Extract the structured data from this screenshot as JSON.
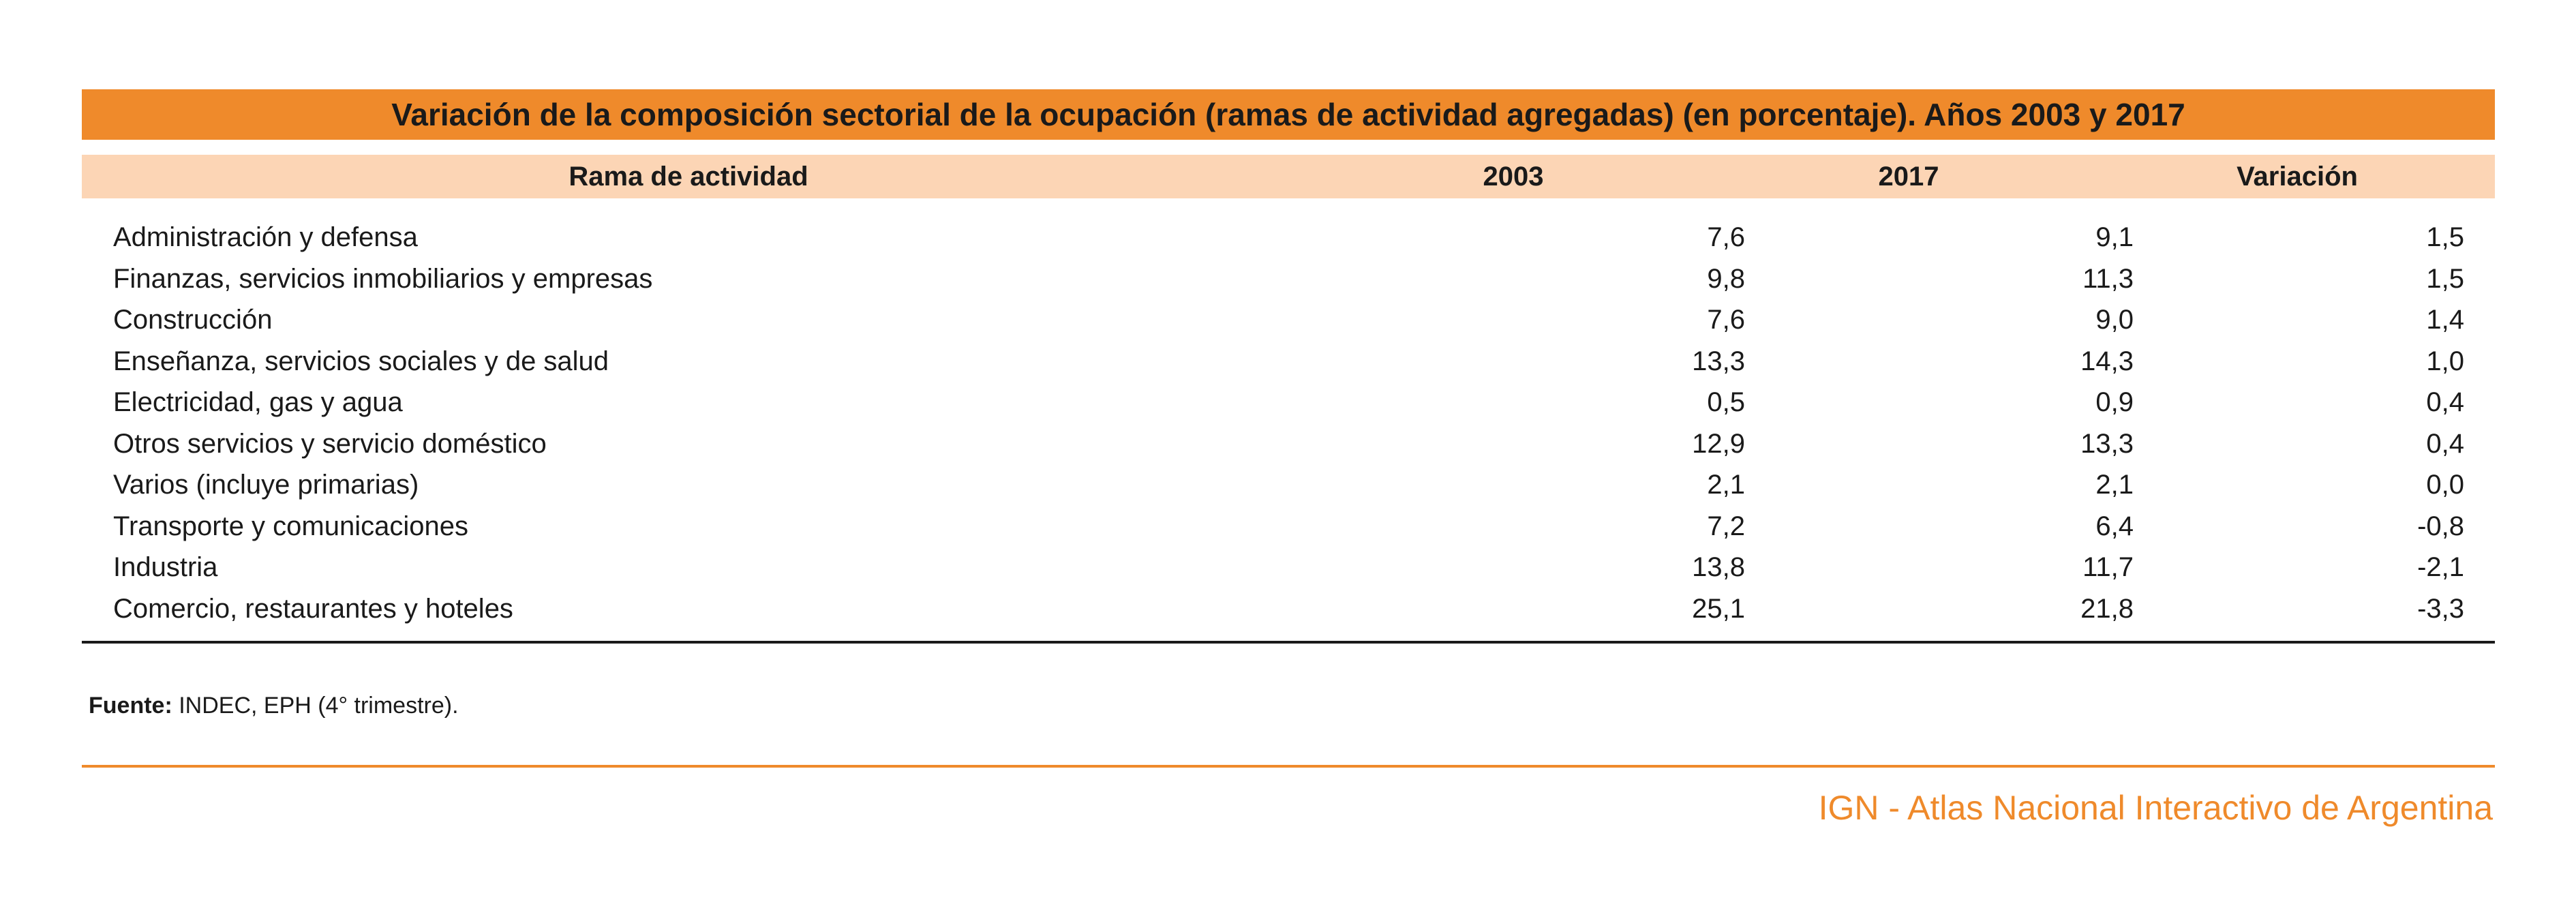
{
  "table": {
    "title": "Variación de la composición sectorial de la ocupación (ramas de actividad agregadas) (en porcentaje). Años 2003 y 2017",
    "headers": [
      "Rama de actividad",
      "2003",
      "2017",
      "Variación"
    ],
    "rows": [
      {
        "rama": "Administración y defensa",
        "y2003": "7,6",
        "y2017": "9,1",
        "variacion": "1,5"
      },
      {
        "rama": "Finanzas, servicios inmobiliarios y empresas",
        "y2003": "9,8",
        "y2017": "11,3",
        "variacion": "1,5"
      },
      {
        "rama": "Construcción",
        "y2003": "7,6",
        "y2017": "9,0",
        "variacion": "1,4"
      },
      {
        "rama": "Enseñanza, servicios sociales y de salud",
        "y2003": "13,3",
        "y2017": "14,3",
        "variacion": "1,0"
      },
      {
        "rama": "Electricidad, gas y agua",
        "y2003": "0,5",
        "y2017": "0,9",
        "variacion": "0,4"
      },
      {
        "rama": "Otros servicios y servicio doméstico",
        "y2003": "12,9",
        "y2017": "13,3",
        "variacion": "0,4"
      },
      {
        "rama": "Varios (incluye primarias)",
        "y2003": "2,1",
        "y2017": "2,1",
        "variacion": "0,0"
      },
      {
        "rama": "Transporte y comunicaciones",
        "y2003": "7,2",
        "y2017": "6,4",
        "variacion": "-0,8"
      },
      {
        "rama": "Industria",
        "y2003": "13,8",
        "y2017": "11,7",
        "variacion": "-2,1"
      },
      {
        "rama": "Comercio, restaurantes y hoteles",
        "y2003": "25,1",
        "y2017": "21,8",
        "variacion": "-3,3"
      }
    ]
  },
  "source": {
    "label": "Fuente:",
    "text": " INDEC, EPH (4° trimestre)."
  },
  "credit": "IGN - Atlas Nacional Interactivo de Argentina",
  "colors": {
    "title_bg": "#ef8a2b",
    "header_bg": "#fcd5b5",
    "accent": "#ef8a2b"
  }
}
